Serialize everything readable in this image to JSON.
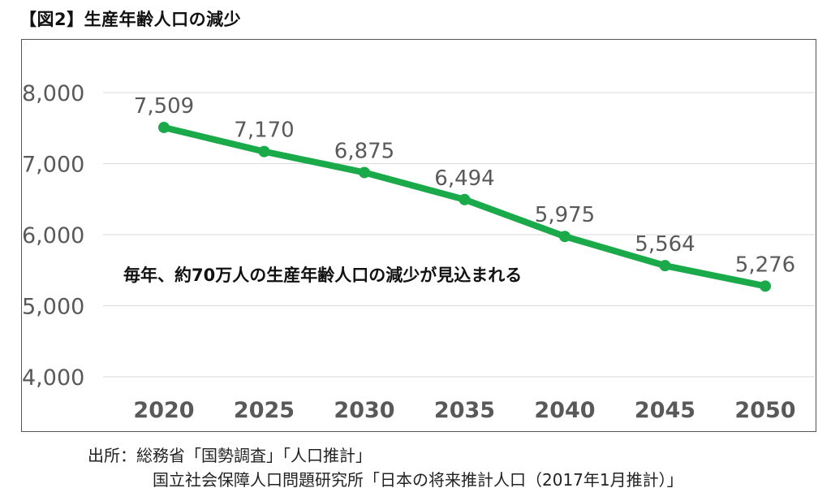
{
  "figure": {
    "title": "【図2】生産年齢人口の減少"
  },
  "source": {
    "line1": "出所：総務省「国勢調査」「人口推計」",
    "line2": "国立社会保障人口問題研究所「日本の将来推計人口（2017年1月推計）」"
  },
  "colors": {
    "line": "#1aaa4a",
    "grid": "#d9d9d9",
    "axis_text": "#595959",
    "annotation": "#111111"
  },
  "chart_data": {
    "type": "line",
    "title": "【図2】生産年齢人口の減少",
    "categories": [
      "2020",
      "2025",
      "2030",
      "2035",
      "2040",
      "2045",
      "2050"
    ],
    "series": [
      {
        "values": [
          7509,
          7170,
          6875,
          6494,
          5975,
          5564,
          5276
        ],
        "labels": [
          "7,509",
          "7,170",
          "6,875",
          "6,494",
          "5,975",
          "5,564",
          "5,276"
        ]
      }
    ],
    "y_ticks": [
      4000,
      5000,
      6000,
      7000,
      8000
    ],
    "y_tick_labels": [
      "4,000",
      "5,000",
      "6,000",
      "7,000",
      "8,000"
    ],
    "ylim": [
      4000,
      8000
    ],
    "xlabel": "",
    "ylabel": "",
    "grid": true,
    "legend": "none",
    "annotation": "毎年、約70万人の生産年齢人口の減少が見込まれる"
  }
}
